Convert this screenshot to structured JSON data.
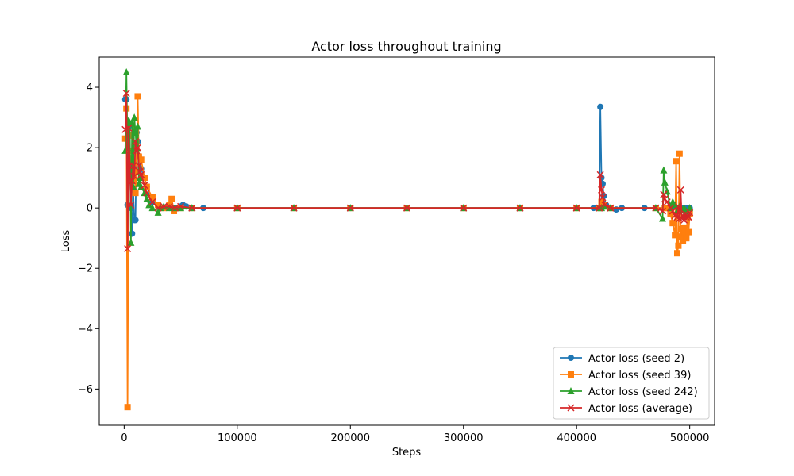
{
  "chart_data": {
    "type": "line",
    "title": "Actor loss throughout training",
    "xlabel": "Steps",
    "ylabel": "Loss",
    "xlim": [
      -22000,
      522000
    ],
    "ylim": [
      -7.2,
      5.0
    ],
    "xticks": [
      0,
      100000,
      200000,
      300000,
      400000,
      500000
    ],
    "xtick_labels": [
      "0",
      "100000",
      "200000",
      "300000",
      "400000",
      "500000"
    ],
    "yticks": [
      -6,
      -4,
      -2,
      0,
      2,
      4
    ],
    "ytick_labels": [
      "−6",
      "−4",
      "−2",
      "0",
      "2",
      "4"
    ],
    "grid": false,
    "legend_position": "lower-right",
    "series": [
      {
        "name": "Actor loss (seed 2)",
        "color": "#1f77b4",
        "marker": "circle",
        "x": [
          1000,
          2000,
          3000,
          4000,
          5000,
          6000,
          7000,
          8000,
          9000,
          10000,
          11000,
          12000,
          13000,
          15000,
          18000,
          20000,
          25000,
          30000,
          35000,
          40000,
          45000,
          50000,
          52000,
          55000,
          60000,
          70000,
          100000,
          150000,
          200000,
          250000,
          300000,
          350000,
          400000,
          415000,
          420000,
          421000,
          422000,
          423000,
          424000,
          426000,
          430000,
          435000,
          440000,
          460000,
          480000,
          490000,
          495000,
          498000,
          500000
        ],
        "y": [
          3.6,
          3.6,
          0.1,
          2.7,
          1.5,
          0.0,
          -0.85,
          0.6,
          -0.4,
          -0.4,
          2.5,
          2.2,
          1.7,
          1.3,
          1.0,
          0.7,
          0.2,
          0.05,
          0.0,
          0.0,
          0.0,
          0.05,
          0.1,
          0.05,
          0.0,
          0.0,
          0.0,
          0.0,
          0.0,
          0.0,
          0.0,
          0.0,
          0.0,
          0.0,
          0.0,
          3.35,
          1.0,
          0.8,
          0.4,
          0.1,
          0.0,
          -0.05,
          0.0,
          0.0,
          0.0,
          0.0,
          0.0,
          0.0,
          0.0
        ]
      },
      {
        "name": "Actor loss (seed 39)",
        "color": "#ff7f0e",
        "marker": "square",
        "x": [
          1000,
          2000,
          3000,
          4000,
          5000,
          6000,
          7000,
          8000,
          9000,
          10000,
          11000,
          12000,
          13000,
          15000,
          18000,
          20000,
          25000,
          30000,
          35000,
          40000,
          42000,
          44000,
          50000,
          60000,
          100000,
          150000,
          200000,
          250000,
          300000,
          350000,
          400000,
          420000,
          422000,
          424000,
          430000,
          470000,
          478000,
          480000,
          483000,
          485000,
          487000,
          488000,
          489000,
          490000,
          491000,
          492000,
          493000,
          494000,
          495000,
          496000,
          497000,
          498000,
          499000,
          500000
        ],
        "y": [
          2.3,
          3.3,
          -6.6,
          2.4,
          1.9,
          1.5,
          1.2,
          0.9,
          1.5,
          0.5,
          1.2,
          3.7,
          1.7,
          1.6,
          1.0,
          0.7,
          0.35,
          0.1,
          0.0,
          0.1,
          0.3,
          -0.1,
          0.0,
          0.0,
          0.0,
          0.0,
          0.0,
          0.0,
          0.0,
          0.0,
          0.0,
          0.0,
          0.2,
          0.1,
          0.0,
          0.0,
          0.0,
          0.0,
          -0.2,
          -0.5,
          -0.9,
          1.55,
          -1.5,
          -1.25,
          1.8,
          -0.95,
          -0.7,
          -1.1,
          -0.65,
          -0.8,
          -1.0,
          -0.3,
          -0.8,
          -0.2
        ]
      },
      {
        "name": "Actor loss (seed 242)",
        "color": "#2ca02c",
        "marker": "triangle",
        "x": [
          1000,
          2000,
          3000,
          4000,
          5000,
          6000,
          7000,
          8000,
          9000,
          10000,
          11000,
          12000,
          13000,
          14000,
          15000,
          18000,
          20000,
          22000,
          25000,
          30000,
          32000,
          35000,
          40000,
          45000,
          50000,
          60000,
          100000,
          150000,
          200000,
          250000,
          300000,
          350000,
          400000,
          420000,
          422000,
          424000,
          430000,
          470000,
          476000,
          477000,
          478000,
          480000,
          483000,
          485000,
          487000,
          489000,
          491000,
          493000,
          495000,
          497000,
          500000
        ],
        "y": [
          1.9,
          4.5,
          2.0,
          2.9,
          2.8,
          -1.15,
          2.8,
          0.7,
          3.0,
          2.5,
          2.0,
          2.7,
          0.8,
          1.0,
          0.7,
          0.5,
          0.3,
          0.1,
          0.0,
          -0.15,
          0.0,
          0.05,
          0.0,
          0.0,
          0.0,
          0.0,
          0.0,
          0.0,
          0.0,
          0.0,
          0.0,
          0.0,
          0.0,
          0.0,
          0.0,
          0.05,
          0.0,
          0.0,
          -0.35,
          1.25,
          0.85,
          0.55,
          0.0,
          0.2,
          0.1,
          -0.1,
          0.05,
          -0.05,
          0.0,
          -0.1,
          0.0
        ]
      },
      {
        "name": "Actor loss (average)",
        "color": "#d62728",
        "marker": "x",
        "x": [
          1000,
          2000,
          3000,
          4000,
          5000,
          6000,
          7000,
          8000,
          9000,
          10000,
          11000,
          12000,
          13000,
          14000,
          15000,
          18000,
          20000,
          25000,
          30000,
          35000,
          40000,
          45000,
          50000,
          60000,
          100000,
          150000,
          200000,
          250000,
          300000,
          350000,
          400000,
          420000,
          421000,
          422000,
          423000,
          425000,
          430000,
          470000,
          476000,
          477000,
          478000,
          480000,
          483000,
          485000,
          487000,
          489000,
          490000,
          491000,
          492000,
          493000,
          494000,
          495000,
          496000,
          497000,
          498000,
          499000,
          500000
        ],
        "y": [
          2.6,
          3.8,
          -1.35,
          2.65,
          1.4,
          0.1,
          0.9,
          1.4,
          1.05,
          2.2,
          1.9,
          2.0,
          1.4,
          1.2,
          1.1,
          0.75,
          0.5,
          0.2,
          0.0,
          0.05,
          0.05,
          0.0,
          0.05,
          0.0,
          0.0,
          0.0,
          0.0,
          0.0,
          0.0,
          0.0,
          0.0,
          0.0,
          1.1,
          0.6,
          0.35,
          0.1,
          0.0,
          0.0,
          -0.1,
          0.45,
          0.3,
          0.2,
          0.0,
          -0.1,
          -0.25,
          -0.3,
          0.05,
          -0.35,
          0.6,
          -0.35,
          -0.25,
          -0.4,
          -0.2,
          -0.3,
          -0.25,
          -0.3,
          -0.15
        ]
      }
    ]
  }
}
